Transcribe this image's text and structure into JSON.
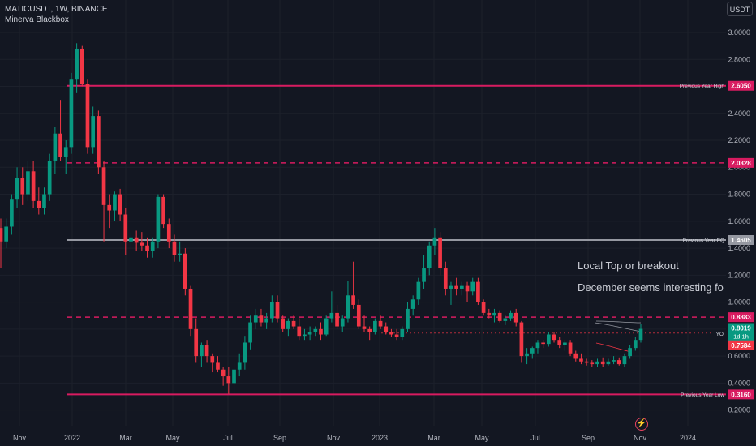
{
  "header": {
    "symbol_line": "MATICUSDT, 1W, BINANCE",
    "indicator": "Minerva Blackbox",
    "unit": "USDT"
  },
  "notes": {
    "line1": "Local Top or breakout",
    "line2": "December seems interesting fo"
  },
  "icons": {
    "bolt": "lightning-icon"
  },
  "colors": {
    "background": "#131722",
    "up": "#089981",
    "down": "#f23645",
    "level_magenta": "#d81b60",
    "level_gray": "#9598a1",
    "text": "#d1d4dc"
  },
  "chart_data": {
    "type": "candlestick",
    "x_tick_labels": [
      "Nov",
      "2022",
      "Mar",
      "May",
      "Jul",
      "Sep",
      "Nov",
      "2023",
      "Mar",
      "May",
      "Jul",
      "Sep",
      "Nov",
      "2024"
    ],
    "y_tick_labels": [
      "3.0000",
      "2.8000",
      "2.6000",
      "2.4000",
      "2.2000",
      "2.0000",
      "1.8000",
      "1.6000",
      "1.4000",
      "1.2000",
      "1.0000",
      "0.8000",
      "0.6000",
      "0.4000",
      "0.2000"
    ],
    "y_ticks": [
      3.0,
      2.8,
      2.6,
      2.4,
      2.2,
      2.0,
      1.8,
      1.6,
      1.4,
      1.2,
      1.0,
      0.8,
      0.6,
      0.4,
      0.2
    ],
    "ylim": [
      0.2,
      3.0
    ],
    "levels": [
      {
        "label": "Previous Year High",
        "value_text": "2.6050",
        "value": 2.605,
        "style": "solid",
        "color": "#d81b60"
      },
      {
        "label": "",
        "value_text": "2.0328",
        "value": 2.0328,
        "style": "dashed",
        "color": "#d81b60"
      },
      {
        "label": "Previous Year EQ",
        "value_text": "1.4605",
        "value": 1.4605,
        "style": "solid",
        "color": "#9598a1"
      },
      {
        "label": "",
        "value_text": "0.8883",
        "value": 0.8883,
        "style": "dashed",
        "color": "#d81b60"
      },
      {
        "label": "Previous Year Low",
        "value_text": "0.3160",
        "value": 0.316,
        "style": "solid",
        "color": "#d81b60"
      }
    ],
    "yo_line": {
      "label": "YO",
      "value": 0.7584,
      "value_text": "0.7584"
    },
    "last_price": {
      "value": 0.8019,
      "value_text": "0.8019",
      "countdown": "1d 1h"
    },
    "ohlc": [
      [
        1.55,
        1.62,
        1.25,
        1.45
      ],
      [
        1.45,
        1.62,
        1.4,
        1.56
      ],
      [
        1.56,
        1.8,
        1.5,
        1.76
      ],
      [
        1.76,
        2.0,
        1.7,
        1.92
      ],
      [
        1.92,
        2.0,
        1.72,
        1.8
      ],
      [
        1.8,
        2.05,
        1.75,
        1.97
      ],
      [
        1.97,
        2.05,
        1.7,
        1.75
      ],
      [
        1.75,
        1.85,
        1.65,
        1.7
      ],
      [
        1.7,
        1.85,
        1.65,
        1.8
      ],
      [
        1.8,
        2.1,
        1.75,
        2.05
      ],
      [
        2.05,
        2.3,
        1.95,
        2.25
      ],
      [
        2.25,
        2.5,
        2.05,
        2.08
      ],
      [
        2.08,
        2.2,
        1.95,
        2.15
      ],
      [
        2.15,
        2.7,
        2.1,
        2.65
      ],
      [
        2.65,
        2.92,
        2.55,
        2.88
      ],
      [
        2.88,
        2.9,
        2.6,
        2.62
      ],
      [
        2.62,
        2.65,
        2.1,
        2.15
      ],
      [
        2.15,
        2.45,
        2.1,
        2.38
      ],
      [
        2.38,
        2.42,
        1.95,
        2.0
      ],
      [
        2.0,
        2.05,
        1.45,
        1.72
      ],
      [
        1.72,
        1.8,
        1.55,
        1.68
      ],
      [
        1.68,
        1.82,
        1.6,
        1.8
      ],
      [
        1.8,
        1.84,
        1.6,
        1.65
      ],
      [
        1.65,
        1.7,
        1.35,
        1.45
      ],
      [
        1.45,
        1.52,
        1.4,
        1.48
      ],
      [
        1.48,
        1.53,
        1.38,
        1.44
      ],
      [
        1.44,
        1.52,
        1.38,
        1.42
      ],
      [
        1.42,
        1.48,
        1.33,
        1.38
      ],
      [
        1.38,
        1.48,
        1.33,
        1.45
      ],
      [
        1.45,
        1.8,
        1.4,
        1.78
      ],
      [
        1.78,
        1.8,
        1.55,
        1.58
      ],
      [
        1.58,
        1.62,
        1.4,
        1.45
      ],
      [
        1.45,
        1.5,
        1.3,
        1.35
      ],
      [
        1.35,
        1.45,
        1.3,
        1.36
      ],
      [
        1.36,
        1.4,
        1.05,
        1.1
      ],
      [
        1.1,
        1.12,
        0.75,
        0.8
      ],
      [
        0.8,
        0.88,
        0.55,
        0.6
      ],
      [
        0.6,
        0.7,
        0.52,
        0.68
      ],
      [
        0.68,
        0.72,
        0.55,
        0.6
      ],
      [
        0.6,
        0.62,
        0.48,
        0.55
      ],
      [
        0.55,
        0.6,
        0.48,
        0.5
      ],
      [
        0.5,
        0.52,
        0.38,
        0.45
      ],
      [
        0.45,
        0.52,
        0.32,
        0.4
      ],
      [
        0.4,
        0.55,
        0.32,
        0.5
      ],
      [
        0.5,
        0.62,
        0.45,
        0.55
      ],
      [
        0.55,
        0.75,
        0.5,
        0.7
      ],
      [
        0.7,
        0.9,
        0.65,
        0.85
      ],
      [
        0.85,
        0.95,
        0.8,
        0.9
      ],
      [
        0.9,
        0.95,
        0.82,
        0.85
      ],
      [
        0.85,
        0.92,
        0.8,
        0.88
      ],
      [
        0.88,
        1.05,
        0.85,
        1.0
      ],
      [
        1.0,
        1.05,
        0.85,
        0.88
      ],
      [
        0.88,
        0.9,
        0.78,
        0.8
      ],
      [
        0.8,
        0.88,
        0.75,
        0.86
      ],
      [
        0.86,
        0.9,
        0.8,
        0.82
      ],
      [
        0.82,
        0.88,
        0.72,
        0.75
      ],
      [
        0.75,
        0.8,
        0.72,
        0.76
      ],
      [
        0.76,
        0.82,
        0.72,
        0.78
      ],
      [
        0.78,
        0.82,
        0.75,
        0.8
      ],
      [
        0.8,
        0.85,
        0.72,
        0.76
      ],
      [
        0.76,
        0.9,
        0.75,
        0.88
      ],
      [
        0.88,
        1.08,
        0.85,
        0.92
      ],
      [
        0.92,
        0.98,
        0.8,
        0.82
      ],
      [
        0.82,
        0.9,
        0.78,
        0.88
      ],
      [
        0.88,
        1.16,
        0.85,
        1.05
      ],
      [
        1.05,
        1.3,
        0.95,
        0.98
      ],
      [
        0.98,
        1.02,
        0.8,
        0.82
      ],
      [
        0.82,
        0.9,
        0.78,
        0.8
      ],
      [
        0.8,
        0.82,
        0.72,
        0.78
      ],
      [
        0.78,
        0.88,
        0.76,
        0.86
      ],
      [
        0.86,
        0.9,
        0.8,
        0.82
      ],
      [
        0.82,
        0.85,
        0.76,
        0.78
      ],
      [
        0.78,
        0.8,
        0.74,
        0.76
      ],
      [
        0.76,
        0.8,
        0.72,
        0.74
      ],
      [
        0.74,
        0.82,
        0.72,
        0.8
      ],
      [
        0.8,
        1.0,
        0.78,
        0.95
      ],
      [
        0.95,
        1.05,
        0.9,
        1.02
      ],
      [
        1.02,
        1.18,
        0.98,
        1.15
      ],
      [
        1.15,
        1.35,
        1.1,
        1.25
      ],
      [
        1.25,
        1.45,
        1.2,
        1.42
      ],
      [
        1.42,
        1.55,
        1.35,
        1.48
      ],
      [
        1.48,
        1.52,
        1.2,
        1.25
      ],
      [
        1.25,
        1.3,
        1.05,
        1.1
      ],
      [
        1.1,
        1.15,
        0.98,
        1.12
      ],
      [
        1.12,
        1.18,
        1.05,
        1.1
      ],
      [
        1.1,
        1.15,
        1.05,
        1.12
      ],
      [
        1.12,
        1.15,
        1.0,
        1.08
      ],
      [
        1.08,
        1.18,
        1.05,
        1.15
      ],
      [
        1.15,
        1.18,
        0.98,
        1.0
      ],
      [
        1.0,
        1.02,
        0.9,
        0.92
      ],
      [
        0.92,
        0.95,
        0.88,
        0.9
      ],
      [
        0.9,
        0.95,
        0.85,
        0.92
      ],
      [
        0.92,
        0.94,
        0.85,
        0.86
      ],
      [
        0.86,
        0.9,
        0.83,
        0.88
      ],
      [
        0.88,
        0.94,
        0.86,
        0.92
      ],
      [
        0.92,
        0.95,
        0.82,
        0.85
      ],
      [
        0.85,
        0.86,
        0.55,
        0.6
      ],
      [
        0.6,
        0.66,
        0.54,
        0.62
      ],
      [
        0.62,
        0.67,
        0.58,
        0.66
      ],
      [
        0.66,
        0.72,
        0.62,
        0.7
      ],
      [
        0.7,
        0.72,
        0.66,
        0.69
      ],
      [
        0.69,
        0.78,
        0.67,
        0.76
      ],
      [
        0.76,
        0.78,
        0.7,
        0.72
      ],
      [
        0.72,
        0.74,
        0.66,
        0.68
      ],
      [
        0.68,
        0.72,
        0.64,
        0.7
      ],
      [
        0.7,
        0.72,
        0.6,
        0.62
      ],
      [
        0.62,
        0.64,
        0.56,
        0.58
      ],
      [
        0.58,
        0.62,
        0.54,
        0.56
      ],
      [
        0.56,
        0.58,
        0.53,
        0.55
      ],
      [
        0.55,
        0.57,
        0.52,
        0.54
      ],
      [
        0.54,
        0.58,
        0.52,
        0.56
      ],
      [
        0.56,
        0.59,
        0.52,
        0.54
      ],
      [
        0.54,
        0.58,
        0.53,
        0.56
      ],
      [
        0.56,
        0.6,
        0.54,
        0.57
      ],
      [
        0.57,
        0.59,
        0.53,
        0.54
      ],
      [
        0.54,
        0.62,
        0.52,
        0.6
      ],
      [
        0.6,
        0.68,
        0.58,
        0.66
      ],
      [
        0.66,
        0.74,
        0.64,
        0.72
      ],
      [
        0.72,
        0.84,
        0.7,
        0.8019
      ]
    ]
  }
}
